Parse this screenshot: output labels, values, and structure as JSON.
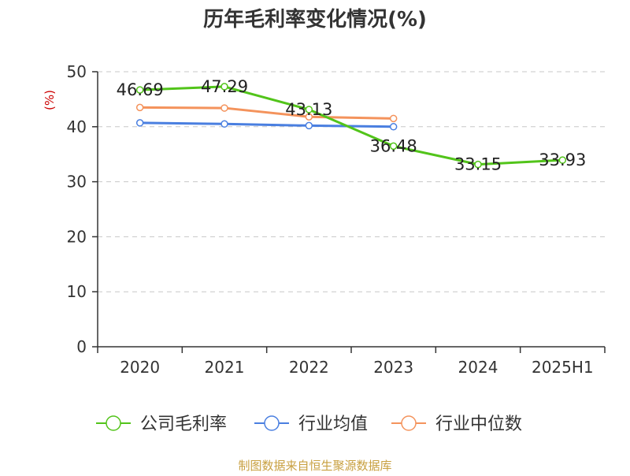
{
  "chart_data": {
    "type": "line",
    "title": "历年毛利率变化情况(%)",
    "ylabel": "(%)",
    "xlabel": "",
    "categories": [
      "2020",
      "2021",
      "2022",
      "2023",
      "2024",
      "2025H1"
    ],
    "ylim": [
      0,
      50
    ],
    "yticks": [
      0,
      10,
      20,
      30,
      40,
      50
    ],
    "grid": true,
    "legend_position": "bottom",
    "series": [
      {
        "name": "公司毛利率",
        "color": "#52c41a",
        "values": [
          46.69,
          47.29,
          43.13,
          36.48,
          33.15,
          33.93
        ],
        "labels": [
          "46.69",
          "47.29",
          "43.13",
          "36.48",
          "33.15",
          "33.93"
        ]
      },
      {
        "name": "行业均值",
        "color": "#4a7fe0",
        "values": [
          40.7,
          40.5,
          40.2,
          40.0,
          null,
          null
        ]
      },
      {
        "name": "行业中位数",
        "color": "#f4935c",
        "values": [
          43.5,
          43.4,
          41.8,
          41.5,
          null,
          null
        ]
      }
    ],
    "source": "制图数据来自恒生聚源数据库"
  }
}
